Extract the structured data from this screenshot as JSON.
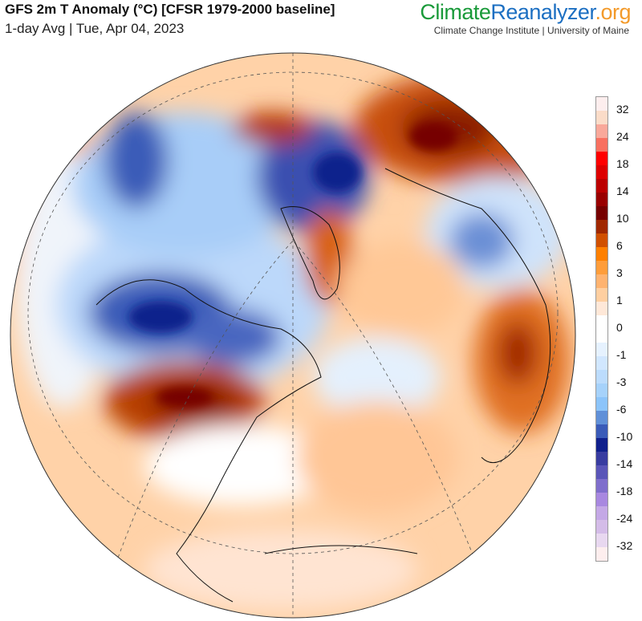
{
  "header": {
    "title": "GFS 2m T Anomaly (°C) [CFSR 1979-2000 baseline]",
    "subtitle": "1-day Avg | Tue, Apr 04, 2023",
    "brand_climate": "Climate",
    "brand_reanalyzer": "Reanalyzer",
    "brand_org": ".org",
    "institution": "Climate Change Institute | University of Maine"
  },
  "colorbar": {
    "labels": [
      "32",
      "24",
      "18",
      "14",
      "10",
      "6",
      "3",
      "1",
      "0",
      "-1",
      "-3",
      "-6",
      "-10",
      "-14",
      "-18",
      "-24",
      "-32"
    ],
    "colors": [
      "#fdeeee",
      "#fbdcc8",
      "#f9a89a",
      "#f87060",
      "#ff0000",
      "#dd0000",
      "#bb0000",
      "#990000",
      "#760000",
      "#a02800",
      "#d05000",
      "#ff8000",
      "#ff9d3a",
      "#ffb370",
      "#ffcfa0",
      "#ffe8d8",
      "#ffffff",
      "#ffffff",
      "#e6f2ff",
      "#d1e7ff",
      "#bcdcfd",
      "#a6d2fb",
      "#8cc4fa",
      "#6090d8",
      "#3a5bb8",
      "#10208c",
      "#383ca0",
      "#5a55b8",
      "#7f6ecc",
      "#a888e0",
      "#c4a8e6",
      "#d4bce8",
      "#e8d8f0",
      "#fdeeee"
    ]
  }
}
